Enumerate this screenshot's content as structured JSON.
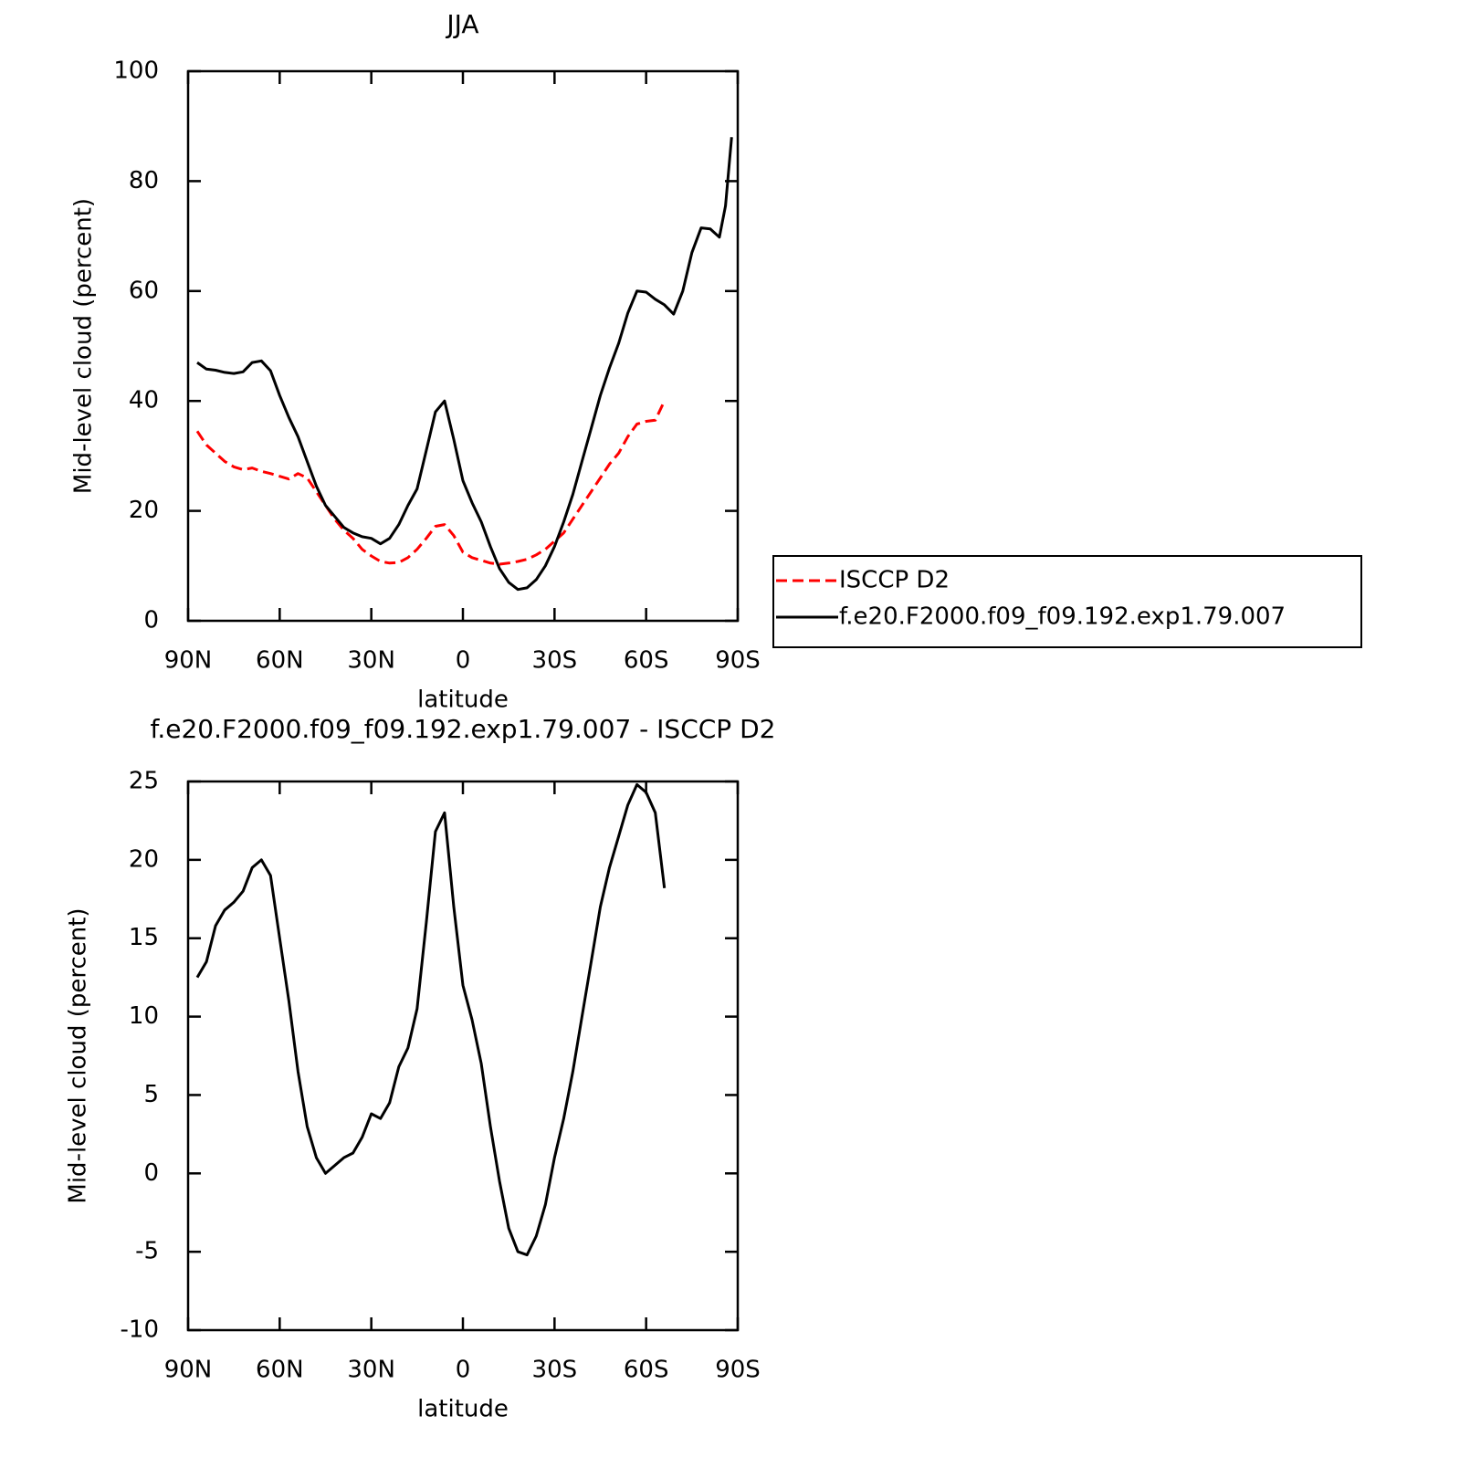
{
  "chart_data": [
    {
      "type": "line",
      "title": "JJA",
      "xlabel": "latitude",
      "ylabel": "Mid-level cloud (percent)",
      "x": [
        87,
        84,
        81,
        78,
        75,
        72,
        69,
        66,
        63,
        60,
        57,
        54,
        51,
        48,
        45,
        42,
        39,
        36,
        33,
        30,
        27,
        24,
        21,
        18,
        15,
        12,
        9,
        6,
        3,
        0,
        -3,
        -6,
        -9,
        -12,
        -15,
        -18,
        -21,
        -24,
        -27,
        -30,
        -33,
        -36,
        -39,
        -42,
        -45,
        -48,
        -51,
        -54,
        -57,
        -60,
        -63,
        -66,
        -69,
        -72,
        -75,
        -78,
        -81,
        -84,
        -86,
        -88
      ],
      "xlim": [
        90,
        -90
      ],
      "xticks": [
        {
          "value": 90,
          "label": "90N"
        },
        {
          "value": 60,
          "label": "60N"
        },
        {
          "value": 30,
          "label": "30N"
        },
        0,
        {
          "value": -30,
          "label": "30S"
        },
        {
          "value": -60,
          "label": "60S"
        },
        {
          "value": -90,
          "label": "90S"
        }
      ],
      "ylim": [
        0,
        100
      ],
      "yticks": [
        0,
        20,
        40,
        60,
        80,
        100
      ],
      "legend": "right",
      "series": [
        {
          "name": "ISCCP D2",
          "color": "#ff0000",
          "linestyle": "dashed",
          "values": [
            34.5,
            32,
            30.5,
            29,
            28,
            27.5,
            27.8,
            27.2,
            26.8,
            26.3,
            25.8,
            26.8,
            26,
            23.5,
            21,
            18.5,
            16.5,
            15,
            13,
            11.8,
            10.8,
            10.5,
            10.6,
            11.5,
            13,
            15,
            17.2,
            17.5,
            15.5,
            12.5,
            11.5,
            11,
            10.5,
            10.3,
            10.5,
            10.8,
            11.2,
            12,
            13,
            14.5,
            16,
            18.5,
            21,
            23.5,
            26,
            28.5,
            30.5,
            33.5,
            35.8,
            36.3,
            36.5,
            40,
            null,
            null,
            null,
            null,
            null,
            null,
            null,
            null
          ]
        },
        {
          "name": "f.e20.F2000.f09_f09.192.exp1.79.007",
          "color": "#000000",
          "linestyle": "solid",
          "values": [
            47,
            45.8,
            45.6,
            45.2,
            45,
            45.3,
            47,
            47.3,
            45.5,
            41,
            37,
            33.5,
            29,
            24.5,
            21,
            19,
            17,
            16,
            15.3,
            15,
            14,
            15,
            17.5,
            21,
            24,
            31,
            38,
            40,
            33,
            25.5,
            21.5,
            18,
            13.5,
            9.5,
            7,
            5.7,
            6,
            7.5,
            10,
            13.5,
            18,
            23,
            29,
            35,
            41,
            46,
            50.5,
            56,
            60,
            59.8,
            58.5,
            57.5,
            55.8,
            60,
            67,
            71.5,
            71.3,
            69.8,
            75.5,
            88
          ]
        }
      ]
    },
    {
      "type": "line",
      "title": "f.e20.F2000.f09_f09.192.exp1.79.007 - ISCCP D2",
      "xlabel": "latitude",
      "ylabel": "Mid-level cloud (percent)",
      "x": [
        87,
        84,
        81,
        78,
        75,
        72,
        69,
        66,
        63,
        60,
        57,
        54,
        51,
        48,
        45,
        42,
        39,
        36,
        33,
        30,
        27,
        24,
        21,
        18,
        15,
        12,
        9,
        6,
        3,
        0,
        -3,
        -6,
        -9,
        -12,
        -15,
        -18,
        -21,
        -24,
        -27,
        -30,
        -33,
        -36,
        -39,
        -42,
        -45,
        -48,
        -51,
        -54,
        -57,
        -60,
        -63,
        -66
      ],
      "xlim": [
        90,
        -90
      ],
      "xticks": [
        {
          "value": 90,
          "label": "90N"
        },
        {
          "value": 60,
          "label": "60N"
        },
        {
          "value": 30,
          "label": "30N"
        },
        0,
        {
          "value": -30,
          "label": "30S"
        },
        {
          "value": -60,
          "label": "60S"
        },
        {
          "value": -90,
          "label": "90S"
        }
      ],
      "ylim": [
        -10,
        25
      ],
      "yticks": [
        -10,
        -5,
        0,
        5,
        10,
        15,
        20,
        25
      ],
      "series": [
        {
          "color": "#000000",
          "linestyle": "solid",
          "values": [
            12.5,
            13.5,
            15.8,
            16.8,
            17.3,
            18,
            19.5,
            20,
            19,
            15,
            11,
            6.5,
            3,
            1,
            0,
            0.5,
            1,
            1.3,
            2.3,
            3.8,
            3.5,
            4.5,
            6.8,
            8,
            10.5,
            16,
            21.8,
            23,
            17,
            12,
            9.8,
            7,
            3,
            -0.5,
            -3.5,
            -5,
            -5.2,
            -4,
            -2,
            1,
            3.5,
            6.5,
            10,
            13.5,
            17,
            19.5,
            21.5,
            23.5,
            24.8,
            24.3,
            23,
            18.2
          ]
        }
      ]
    }
  ]
}
